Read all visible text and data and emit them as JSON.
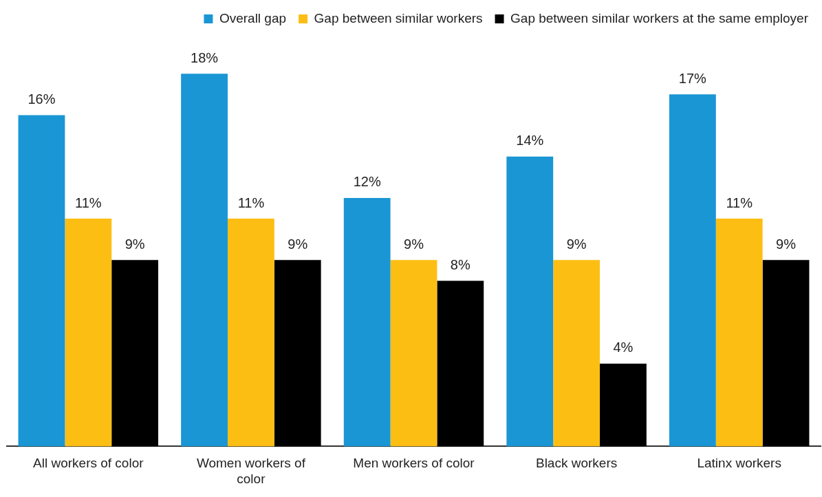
{
  "chart_data": {
    "type": "bar",
    "categories": [
      "All workers of color",
      "Women workers of color",
      "Men workers of color",
      "Black workers",
      "Latinx workers"
    ],
    "series": [
      {
        "name": "Overall gap",
        "color": "#1a96d4",
        "values": [
          16,
          18,
          12,
          14,
          17
        ],
        "value_labels": [
          "16%",
          "18%",
          "12%",
          "14%",
          "17%"
        ]
      },
      {
        "name": "Gap between similar workers",
        "color": "#fdbe14",
        "values": [
          11,
          11,
          9,
          9,
          11
        ],
        "value_labels": [
          "11%",
          "11%",
          "9%",
          "9%",
          "11%"
        ]
      },
      {
        "name": "Gap between similar workers at the same employer",
        "color": "#000000",
        "values": [
          9,
          9,
          8,
          4,
          9
        ],
        "value_labels": [
          "9%",
          "9%",
          "8%",
          "4%",
          "9%"
        ]
      }
    ],
    "legend": "top",
    "grid": false
  }
}
